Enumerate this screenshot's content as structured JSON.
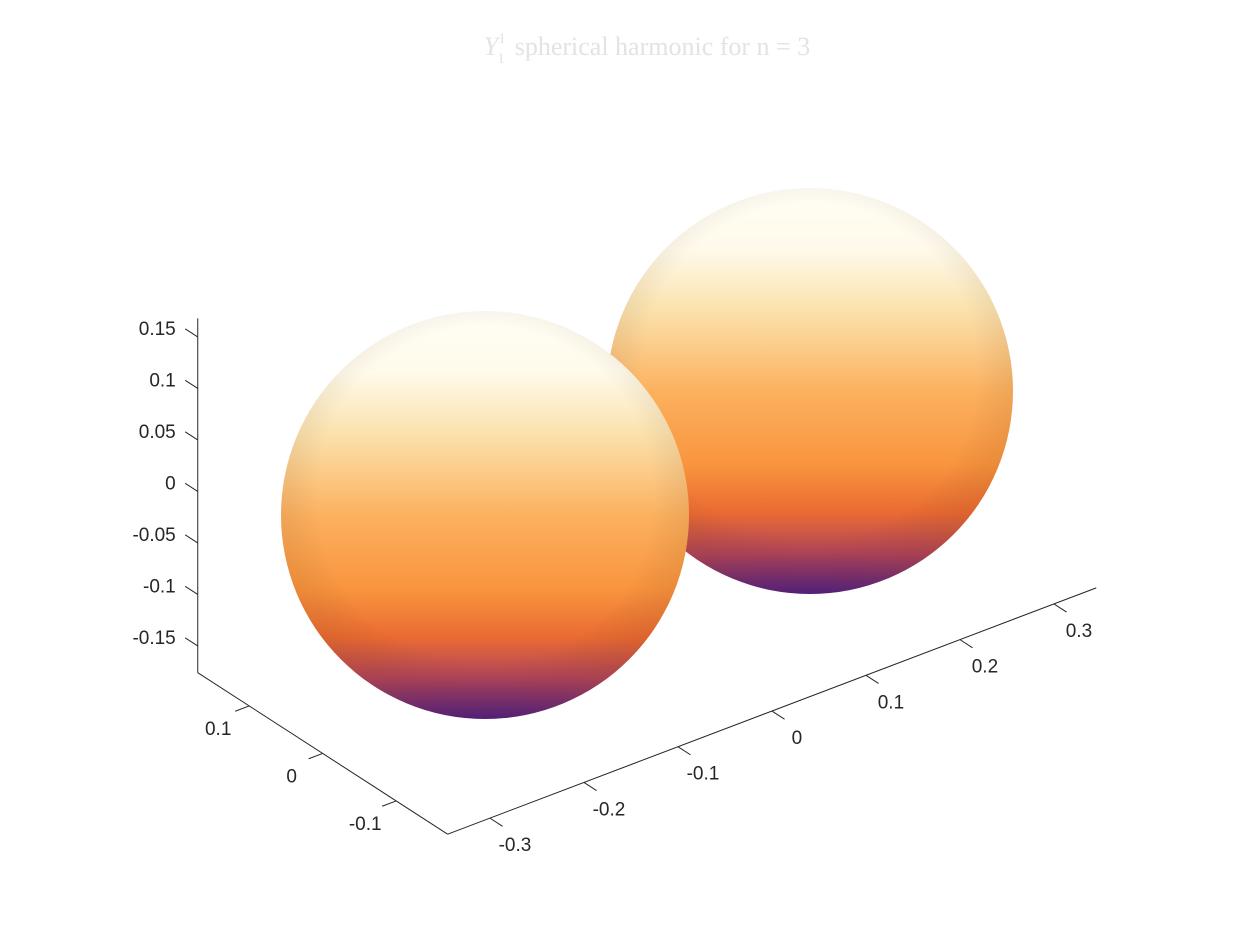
{
  "chart_data": {
    "type": "surface3d",
    "title": {
      "symbol": "Y",
      "sub": "1",
      "sup": "1",
      "text": "spherical harmonic for n = 3"
    },
    "xlim": [
      -0.345,
      0.345
    ],
    "xticks": [
      -0.3,
      -0.2,
      -0.1,
      0,
      0.1,
      0.2,
      0.3
    ],
    "ylim": [
      -0.17,
      0.17
    ],
    "yticks": [
      -0.1,
      0,
      0.1
    ],
    "zlim": [
      -0.176,
      0.168
    ],
    "zticks": [
      -0.15,
      -0.1,
      -0.05,
      0,
      0.05,
      0.1,
      0.15
    ]
  }
}
